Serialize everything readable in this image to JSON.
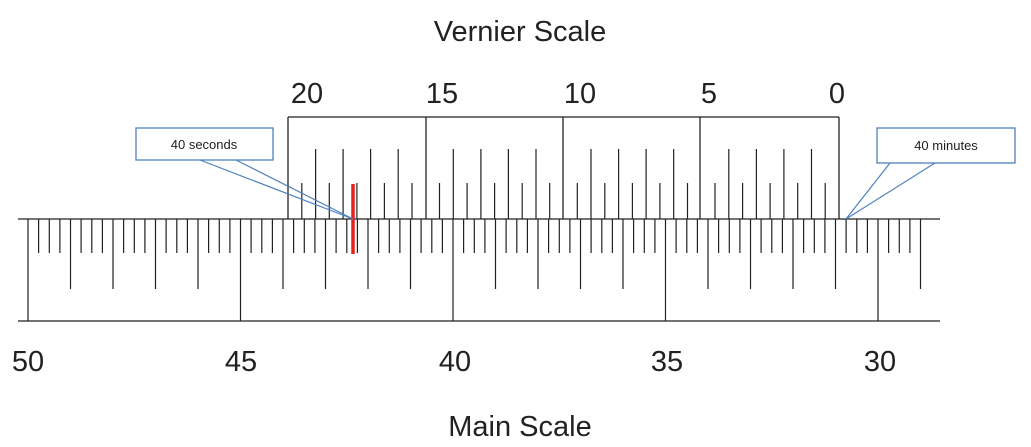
{
  "diagram": {
    "vernier_title": "Vernier Scale",
    "main_title": "Main Scale",
    "vernier_numbers": [
      "20",
      "15",
      "10",
      "5",
      "0"
    ],
    "main_numbers": [
      "50",
      "45",
      "40",
      "35",
      "30"
    ],
    "callout_left": "40 seconds",
    "callout_right": "40 minutes",
    "colors": {
      "line": "#222222",
      "highlight": "#e8201c",
      "callout_border": "#4f81bd"
    }
  }
}
